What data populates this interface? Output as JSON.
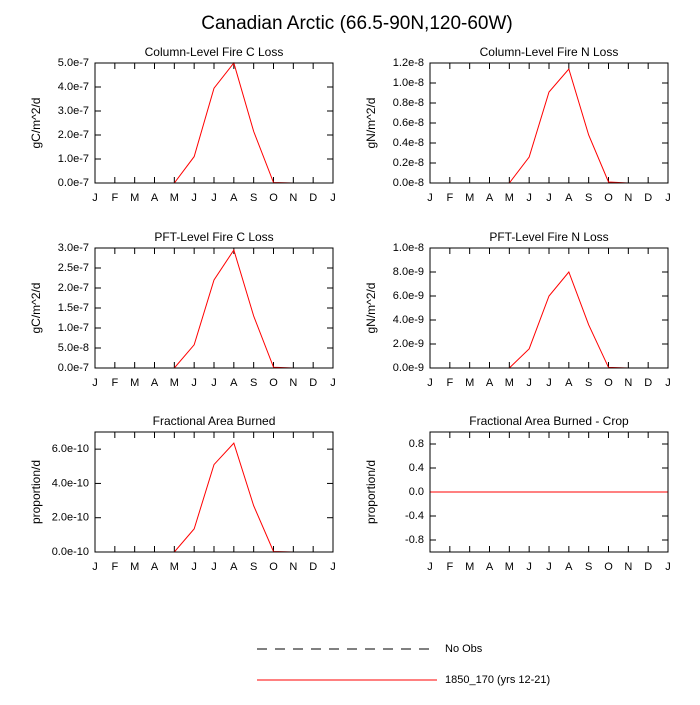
{
  "title": "Canadian Arctic (66.5-90N,120-60W)",
  "legend": [
    {
      "name": "No Obs",
      "color": "#000000",
      "dash": true
    },
    {
      "name": "1850_170 (yrs 12-21)",
      "color": "#ff0000",
      "dash": false
    }
  ],
  "chart_data": [
    {
      "type": "line",
      "title": "Column-Level Fire C Loss",
      "y_label": "gC/m^2/d",
      "categories": [
        "J",
        "F",
        "M",
        "A",
        "M",
        "J",
        "J",
        "A",
        "S",
        "O",
        "N",
        "D",
        "J"
      ],
      "series": [
        {
          "color": "#ff0000",
          "values": [
            0,
            0,
            0,
            0,
            0,
            1.1e-07,
            3.95e-07,
            5e-07,
            2.15e-07,
            2e-09,
            0,
            0,
            0
          ]
        }
      ],
      "ylim": [
        0,
        5e-07
      ],
      "yticks": [
        {
          "value": 0,
          "label": "0.0e-7"
        },
        {
          "value": 1e-07,
          "label": "1.0e-7"
        },
        {
          "value": 2e-07,
          "label": "2.0e-7"
        },
        {
          "value": 3e-07,
          "label": "3.0e-7"
        },
        {
          "value": 4e-07,
          "label": "4.0e-7"
        },
        {
          "value": 5e-07,
          "label": "5.0e-7"
        }
      ]
    },
    {
      "type": "line",
      "title": "Column-Level Fire N Loss",
      "y_label": "gN/m^2/d",
      "categories": [
        "J",
        "F",
        "M",
        "A",
        "M",
        "J",
        "J",
        "A",
        "S",
        "O",
        "N",
        "D",
        "J"
      ],
      "series": [
        {
          "color": "#ff0000",
          "values": [
            0,
            0,
            0,
            0,
            0,
            2.6e-09,
            9.1e-09,
            1.14e-08,
            4.8e-09,
            1e-10,
            0,
            0,
            0
          ]
        }
      ],
      "ylim": [
        0,
        1.2e-08
      ],
      "yticks": [
        {
          "value": 0,
          "label": "0.0e-8"
        },
        {
          "value": 2e-09,
          "label": "0.2e-8"
        },
        {
          "value": 4e-09,
          "label": "0.4e-8"
        },
        {
          "value": 6e-09,
          "label": "0.6e-8"
        },
        {
          "value": 8e-09,
          "label": "0.8e-8"
        },
        {
          "value": 1e-08,
          "label": "1.0e-8"
        },
        {
          "value": 1.2e-08,
          "label": "1.2e-8"
        }
      ]
    },
    {
      "type": "line",
      "title": "PFT-Level Fire C Loss",
      "y_label": "gC/m^2/d",
      "categories": [
        "J",
        "F",
        "M",
        "A",
        "M",
        "J",
        "J",
        "A",
        "S",
        "O",
        "N",
        "D",
        "J"
      ],
      "series": [
        {
          "color": "#ff0000",
          "values": [
            0,
            0,
            0,
            0,
            0,
            5.8e-08,
            2.2e-07,
            2.95e-07,
            1.3e-07,
            2e-09,
            0,
            0,
            0
          ]
        }
      ],
      "ylim": [
        0,
        3e-07
      ],
      "yticks": [
        {
          "value": 0,
          "label": "0.0e-7"
        },
        {
          "value": 5e-08,
          "label": "5.0e-8"
        },
        {
          "value": 1e-07,
          "label": "1.0e-7"
        },
        {
          "value": 1.5e-07,
          "label": "1.5e-7"
        },
        {
          "value": 2e-07,
          "label": "2.0e-7"
        },
        {
          "value": 2.5e-07,
          "label": "2.5e-7"
        },
        {
          "value": 3e-07,
          "label": "3.0e-7"
        }
      ]
    },
    {
      "type": "line",
      "title": "PFT-Level Fire N Loss",
      "y_label": "gN/m^2/d",
      "categories": [
        "J",
        "F",
        "M",
        "A",
        "M",
        "J",
        "J",
        "A",
        "S",
        "O",
        "N",
        "D",
        "J"
      ],
      "series": [
        {
          "color": "#ff0000",
          "values": [
            0,
            0,
            0,
            0,
            0,
            1.6e-09,
            6e-09,
            8e-09,
            3.6e-09,
            5e-11,
            0,
            0,
            0
          ]
        }
      ],
      "ylim": [
        0,
        1e-08
      ],
      "yticks": [
        {
          "value": 0,
          "label": "0.0e-9"
        },
        {
          "value": 2e-09,
          "label": "2.0e-9"
        },
        {
          "value": 4e-09,
          "label": "4.0e-9"
        },
        {
          "value": 6e-09,
          "label": "6.0e-9"
        },
        {
          "value": 8e-09,
          "label": "8.0e-9"
        },
        {
          "value": 1e-08,
          "label": "1.0e-8"
        }
      ]
    },
    {
      "type": "line",
      "title": "Fractional Area Burned",
      "y_label": "proportion/d",
      "categories": [
        "J",
        "F",
        "M",
        "A",
        "M",
        "J",
        "J",
        "A",
        "S",
        "O",
        "N",
        "D",
        "J"
      ],
      "series": [
        {
          "color": "#ff0000",
          "values": [
            0,
            0,
            0,
            0,
            0,
            1.35e-10,
            5.1e-10,
            6.35e-10,
            2.7e-10,
            3e-12,
            0,
            0,
            0
          ]
        }
      ],
      "ylim": [
        0,
        7e-10
      ],
      "yticks": [
        {
          "value": 0,
          "label": "0.0e-10"
        },
        {
          "value": 2e-10,
          "label": "2.0e-10"
        },
        {
          "value": 4e-10,
          "label": "4.0e-10"
        },
        {
          "value": 6e-10,
          "label": "6.0e-10"
        }
      ]
    },
    {
      "type": "line",
      "title": "Fractional Area Burned - Crop",
      "y_label": "proportion/d",
      "categories": [
        "J",
        "F",
        "M",
        "A",
        "M",
        "J",
        "J",
        "A",
        "S",
        "O",
        "N",
        "D",
        "J"
      ],
      "series": [
        {
          "color": "#ff0000",
          "values": [
            0,
            0,
            0,
            0,
            0,
            0,
            0,
            0,
            0,
            0,
            0,
            0,
            0
          ]
        }
      ],
      "ylim": [
        -1,
        1
      ],
      "yticks": [
        -0.8,
        -0.4,
        {
          "value": 0,
          "label": "0.0"
        },
        0.4,
        0.8
      ]
    }
  ]
}
